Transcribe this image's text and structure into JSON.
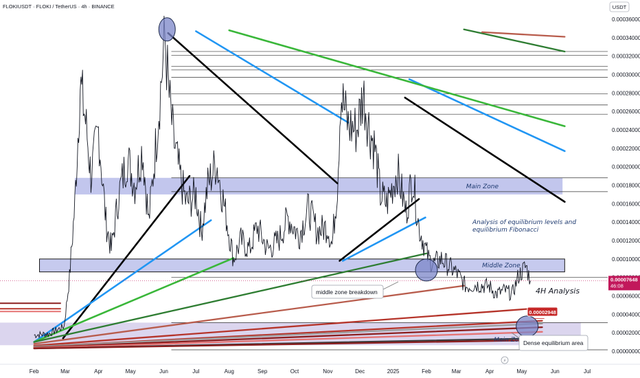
{
  "header": {
    "symbol_line": "FLOKIUSDT · FLOKI / TetherUS · 4h · BINANCE",
    "currency": "USDT"
  },
  "chart_data": {
    "type": "line",
    "symbol": "FLOKIUSDT",
    "interval": "4h",
    "exchange": "BINANCE",
    "xticks": [
      "Feb",
      "Mar",
      "Apr",
      "May",
      "Jun",
      "Jul",
      "Aug",
      "Sep",
      "Oct",
      "Nov",
      "Dec",
      "2025",
      "Feb",
      "Mar",
      "Apr",
      "May",
      "Jun",
      "Jul"
    ],
    "yticks": [
      "0.00036000",
      "0.00034000",
      "0.00032000",
      "0.00030000",
      "0.00028000",
      "0.00026000",
      "0.00024000",
      "0.00022000",
      "0.00020000",
      "0.00018000",
      "0.00016000",
      "0.00014000",
      "0.00012000",
      "0.00010000",
      "0.00008000",
      "0.00006000",
      "0.00004000",
      "0.00002000",
      "0.00000000"
    ],
    "ylim": [
      0,
      0.00036
    ],
    "price_series": [
      [
        "2024-02-01",
        1.75e-05
      ],
      [
        "2024-02-15",
        1.9e-05
      ],
      [
        "2024-02-29",
        2.7e-05
      ],
      [
        "2024-03-05",
        8e-05
      ],
      [
        "2024-03-10",
        0.00016
      ],
      [
        "2024-03-15",
        0.00029
      ],
      [
        "2024-03-20",
        0.00025
      ],
      [
        "2024-03-25",
        0.00019
      ],
      [
        "2024-04-01",
        0.00024
      ],
      [
        "2024-04-08",
        0.00014
      ],
      [
        "2024-04-13",
        0.00011
      ],
      [
        "2024-04-20",
        0.00017
      ],
      [
        "2024-04-28",
        0.00021
      ],
      [
        "2024-05-05",
        0.00018
      ],
      [
        "2024-05-12",
        0.00022
      ],
      [
        "2024-05-18",
        0.00014
      ],
      [
        "2024-05-25",
        0.00023
      ],
      [
        "2024-05-29",
        0.000285
      ],
      [
        "2024-06-02",
        0.00034
      ],
      [
        "2024-06-06",
        0.000275
      ],
      [
        "2024-06-10",
        0.00023
      ],
      [
        "2024-06-16",
        0.00019
      ],
      [
        "2024-06-22",
        0.00016
      ],
      [
        "2024-07-01",
        0.00017
      ],
      [
        "2024-07-06",
        0.00013
      ],
      [
        "2024-07-12",
        0.00018
      ],
      [
        "2024-07-20",
        0.000205
      ],
      [
        "2024-07-27",
        0.00016
      ],
      [
        "2024-08-05",
        0.0001
      ],
      [
        "2024-08-12",
        0.00012
      ],
      [
        "2024-08-20",
        0.00011
      ],
      [
        "2024-08-27",
        0.000135
      ],
      [
        "2024-09-06",
        0.00011
      ],
      [
        "2024-09-16",
        0.00012
      ],
      [
        "2024-09-25",
        0.000145
      ],
      [
        "2024-10-05",
        0.000125
      ],
      [
        "2024-10-14",
        0.000155
      ],
      [
        "2024-10-22",
        0.00013
      ],
      [
        "2024-11-01",
        0.000135
      ],
      [
        "2024-11-05",
        0.000115
      ],
      [
        "2024-11-10",
        0.00018
      ],
      [
        "2024-11-13",
        0.00028
      ],
      [
        "2024-11-20",
        0.000245
      ],
      [
        "2024-11-28",
        0.00024
      ],
      [
        "2024-12-04",
        0.00028
      ],
      [
        "2024-12-10",
        0.00024
      ],
      [
        "2024-12-15",
        0.00022
      ],
      [
        "2024-12-20",
        0.00017
      ],
      [
        "2024-12-26",
        0.00016
      ],
      [
        "2025-01-05",
        0.000195
      ],
      [
        "2025-01-13",
        0.00015
      ],
      [
        "2025-01-19",
        0.00019
      ],
      [
        "2025-01-25",
        0.000135
      ],
      [
        "2025-02-03",
        0.0001
      ],
      [
        "2025-02-08",
        9.5e-05
      ],
      [
        "2025-02-15",
        0.0001
      ],
      [
        "2025-02-22",
        9.2e-05
      ],
      [
        "2025-03-01",
        8.5e-05
      ],
      [
        "2025-03-10",
        7e-05
      ],
      [
        "2025-03-20",
        7.2e-05
      ],
      [
        "2025-04-01",
        7e-05
      ],
      [
        "2025-04-07",
        6.2e-05
      ],
      [
        "2025-04-15",
        6.6e-05
      ],
      [
        "2025-04-22",
        6.2e-05
      ],
      [
        "2025-04-28",
        8.2e-05
      ],
      [
        "2025-05-05",
        9.2e-05
      ],
      [
        "2025-05-09",
        7.648e-05
      ]
    ],
    "last_price": {
      "label": "0.00007648",
      "countdown": "46:08",
      "value": 7.648e-05,
      "color": "#c2185b"
    },
    "level_marker": {
      "label": "0.00002948",
      "value": 2.948e-05,
      "color": "#c62828"
    },
    "zones": [
      {
        "name": "Main Zone",
        "upper": 0.000188,
        "lower": 0.00017,
        "label": "Main Zone"
      },
      {
        "name": "Middle Zone",
        "upper": 0.0001,
        "lower": 8.6e-05,
        "label": "Middle Zone"
      },
      {
        "name": "Main Zone",
        "upper": 3.1e-05,
        "lower": 6.5e-06,
        "label": "Main Zone"
      }
    ],
    "horizontal_levels": [
      0.000325,
      0.000321,
      0.000309,
      0.000305,
      0.000297,
      0.000279,
      0.000267,
      0.000257,
      0.000188,
      0.000173,
      8e-05,
      3.1e-05,
      1.5e-06
    ],
    "trend_lines": [
      {
        "color": "#000000",
        "from": [
          "2024-06-05",
          0.000345
        ],
        "to": [
          "2024-11-10",
          0.000182
        ]
      },
      {
        "color": "#000000",
        "from": [
          "2025-01-12",
          0.000275
        ],
        "to": [
          "2025-06-10",
          0.000162
        ]
      },
      {
        "color": "#000000",
        "from": [
          "2024-02-28",
          1.4e-05
        ],
        "to": [
          "2024-06-25",
          0.00019
        ]
      },
      {
        "color": "#000000",
        "from": [
          "2024-11-12",
          9.8e-05
        ],
        "to": [
          "2025-01-25",
          0.000165
        ]
      },
      {
        "color": "#2196f3",
        "from": [
          "2024-07-01",
          0.000347
        ],
        "to": [
          "2024-11-20",
          0.000248
        ]
      },
      {
        "color": "#2196f3",
        "from": [
          "2025-01-16",
          0.000295
        ],
        "to": [
          "2025-06-10",
          0.000217
        ]
      },
      {
        "color": "#2196f3",
        "from": [
          "2024-02-01",
          1e-05
        ],
        "to": [
          "2024-07-15",
          0.000142
        ]
      },
      {
        "color": "#2196f3",
        "from": [
          "2024-11-15",
          9.8e-05
        ],
        "to": [
          "2025-01-31",
          0.000145
        ]
      },
      {
        "color": "#3ab73a",
        "from": [
          "2024-08-01",
          0.000348
        ],
        "to": [
          "2025-06-10",
          0.000244
        ]
      },
      {
        "color": "#3ab73a",
        "from": [
          "2024-02-01",
          1e-05
        ],
        "to": [
          "2024-08-05",
          0.000101
        ]
      },
      {
        "color": "#2e7d32",
        "from": [
          "2025-03-08",
          0.000349
        ],
        "to": [
          "2025-06-10",
          0.000325
        ]
      },
      {
        "color": "#2e7d32",
        "from": [
          "2024-02-01",
          1e-05
        ],
        "to": [
          "2025-02-01",
          0.000106
        ]
      },
      {
        "color": "#b85c4c",
        "from": [
          "2025-03-25",
          0.000346
        ],
        "to": [
          "2025-06-10",
          0.000341
        ]
      },
      {
        "color": "#b85c4c",
        "from": [
          "2024-02-01",
          8e-06
        ],
        "to": [
          "2025-03-08",
          7.1e-05
        ]
      },
      {
        "color": "#b5342a",
        "from": [
          "2024-02-01",
          6e-06
        ],
        "to": [
          "2025-05-20",
          4.7e-05
        ]
      },
      {
        "color": "#b5342a",
        "from": [
          "2024-02-01",
          5e-06
        ],
        "to": [
          "2025-05-20",
          3.3e-05
        ]
      },
      {
        "color": "#9e9e9e",
        "from": [
          "2024-02-01",
          5e-06
        ],
        "to": [
          "2025-05-20",
          3e-05
        ]
      },
      {
        "color": "#8b1e1e",
        "from": [
          "2024-02-01",
          4e-06
        ],
        "to": [
          "2025-05-20",
          2.6e-05
        ]
      },
      {
        "color": "#e57373",
        "from": [
          "2024-02-01",
          3.5e-06
        ],
        "to": [
          "2025-05-20",
          2.1e-05
        ]
      },
      {
        "color": "#3a3a3a",
        "from": [
          "2024-02-01",
          3e-06
        ],
        "to": [
          "2025-05-20",
          1.4e-05
        ]
      },
      {
        "color": "#8b1e1e",
        "from": [
          "2024-02-01",
          3e-06
        ],
        "to": [
          "2025-05-20",
          1.2e-05
        ]
      }
    ],
    "circles": [
      {
        "at": [
          "2024-06-04",
          0.000349
        ]
      },
      {
        "at": [
          "2025-02-01",
          8.8e-05
        ]
      },
      {
        "at": [
          "2025-05-06",
          2.7e-05
        ]
      }
    ],
    "early_lines": [
      {
        "color": "#8b1e1e",
        "y": 5.2e-05
      },
      {
        "color": "#b5342a",
        "y": 4.6e-05
      },
      {
        "color": "#e57373",
        "y": 4.3e-05
      }
    ]
  },
  "annotations": {
    "analysis_text_line1": "Analysis of equilibrium levels and",
    "analysis_text_line2": "equilibrium Fibonacci",
    "timeframe_label": "4H Analysis",
    "callout_breakdown": "middle zone breakdown",
    "callout_dense": "Dense equilibrium area",
    "main_zone_upper": "Main Zone",
    "middle_zone": "Middle Zone",
    "main_zone_lower": "Main Zone"
  },
  "colors": {
    "zone_fill": "#b3b8e8",
    "zone_stroke": "#2a2a3a",
    "lower_zone_fill": "#d7d0ec",
    "accent_price": "#c2185b",
    "accent_level": "#c62828"
  }
}
